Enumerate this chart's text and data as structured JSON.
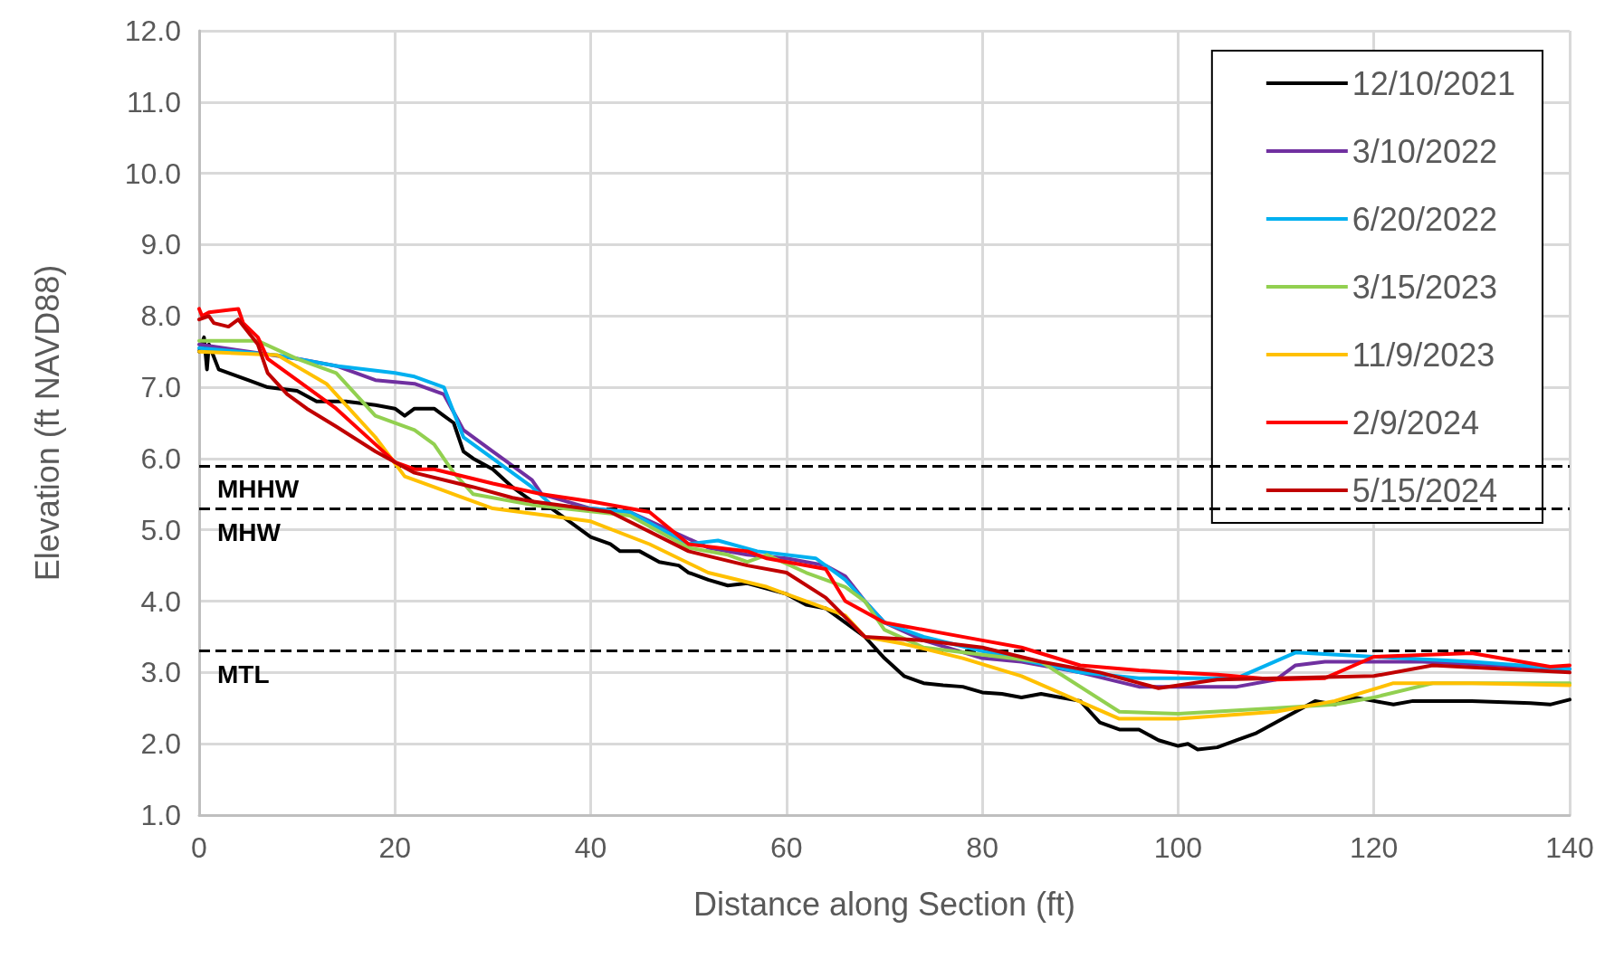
{
  "chart_data": {
    "type": "line",
    "xlabel": "Distance along Section (ft)",
    "ylabel": "Elevation (ft NAVD88)",
    "xlim": [
      0,
      140
    ],
    "xticks": [
      0,
      20,
      40,
      60,
      80,
      100,
      120,
      140
    ],
    "ylim": [
      1,
      12
    ],
    "yticks": [
      {
        "value": 1,
        "label": "1.0"
      },
      {
        "value": 2,
        "label": "2.0"
      },
      {
        "value": 3,
        "label": "3.0"
      },
      {
        "value": 4,
        "label": "4.0"
      },
      {
        "value": 5,
        "label": "5.0"
      },
      {
        "value": 6,
        "label": "6.0"
      },
      {
        "value": 7,
        "label": "7.0"
      },
      {
        "value": 8,
        "label": "8.0"
      },
      {
        "value": 9,
        "label": "9.0"
      },
      {
        "value": 10,
        "label": "10.0"
      },
      {
        "value": 11,
        "label": "11.0"
      },
      {
        "value": 12,
        "label": "12.0"
      }
    ],
    "grid": true,
    "legend": "top right",
    "marker": "none",
    "line_style": "solid",
    "ref_lines": [
      {
        "axis": "y",
        "value": 5.9,
        "label": "MHHW",
        "color": "#000000",
        "line_style": "dashed"
      },
      {
        "axis": "y",
        "value": 5.3,
        "label": "MHW",
        "color": "#000000",
        "line_style": "dashed"
      },
      {
        "axis": "y",
        "value": 3.3,
        "label": "MTL",
        "color": "#000000",
        "line_style": "dashed"
      }
    ],
    "series": [
      {
        "name": "12/10/2021",
        "color": "#000000",
        "x": [
          0,
          0.5,
          0.8,
          1,
          2,
          5,
          7,
          10,
          12,
          15,
          18,
          20,
          21,
          22,
          24,
          25,
          26,
          27,
          28,
          30,
          32,
          34,
          36,
          38,
          40,
          42,
          43,
          45,
          47,
          49,
          50,
          52,
          54,
          56,
          60,
          62,
          64,
          66,
          68,
          70,
          72,
          74,
          76,
          78,
          80,
          82,
          84,
          86,
          88,
          90,
          92,
          94,
          96,
          98,
          100,
          101,
          102,
          104,
          106,
          108,
          110,
          112,
          114,
          116,
          118,
          120,
          122,
          124,
          130,
          136,
          138,
          140
        ],
        "values": [
          7.5,
          7.7,
          7.25,
          7.6,
          7.25,
          7.1,
          7.0,
          6.95,
          6.8,
          6.8,
          6.75,
          6.7,
          6.6,
          6.7,
          6.7,
          6.6,
          6.5,
          6.1,
          6.0,
          5.85,
          5.6,
          5.4,
          5.3,
          5.1,
          4.9,
          4.8,
          4.7,
          4.7,
          4.55,
          4.5,
          4.4,
          4.3,
          4.22,
          4.25,
          4.1,
          3.95,
          3.9,
          3.7,
          3.5,
          3.2,
          2.95,
          2.85,
          2.82,
          2.8,
          2.72,
          2.7,
          2.65,
          2.7,
          2.65,
          2.6,
          2.3,
          2.2,
          2.2,
          2.05,
          1.97,
          2.0,
          1.92,
          1.95,
          2.05,
          2.15,
          2.3,
          2.45,
          2.6,
          2.55,
          2.65,
          2.6,
          2.55,
          2.6,
          2.6,
          2.57,
          2.55,
          2.62
        ]
      },
      {
        "name": "3/10/2022",
        "color": "#7030a0",
        "x": [
          0,
          10,
          14,
          18,
          22,
          25,
          27,
          30,
          34,
          35,
          40,
          44,
          48,
          52,
          56,
          60,
          64,
          66,
          68,
          70,
          74,
          80,
          84,
          90,
          96,
          106,
          110,
          112,
          115,
          125,
          140
        ],
        "values": [
          7.6,
          7.4,
          7.3,
          7.1,
          7.05,
          6.9,
          6.4,
          6.1,
          5.7,
          5.5,
          5.3,
          5.25,
          5.0,
          4.75,
          4.65,
          4.6,
          4.5,
          4.35,
          4.0,
          3.7,
          3.45,
          3.2,
          3.15,
          3.0,
          2.8,
          2.8,
          2.9,
          3.1,
          3.15,
          3.15,
          3.05
        ]
      },
      {
        "name": "6/20/2022",
        "color": "#00b0f0",
        "x": [
          0,
          8,
          14,
          20,
          22,
          25,
          27,
          30,
          34,
          36,
          44,
          50,
          53,
          57,
          63,
          66,
          68,
          70,
          74,
          80,
          90,
          96,
          106,
          112,
          120,
          130,
          140
        ],
        "values": [
          7.55,
          7.45,
          7.3,
          7.2,
          7.15,
          7.0,
          6.3,
          6.0,
          5.6,
          5.35,
          5.25,
          4.8,
          4.85,
          4.7,
          4.6,
          4.3,
          4.0,
          3.7,
          3.5,
          3.3,
          3.0,
          2.92,
          2.92,
          3.28,
          3.22,
          3.15,
          3.05
        ]
      },
      {
        "name": "3/15/2023",
        "color": "#92d050",
        "x": [
          0,
          6,
          10,
          14,
          18,
          22,
          24,
          26,
          28,
          34,
          44,
          50,
          54,
          56,
          58,
          62,
          66,
          68,
          70,
          74,
          80,
          86,
          94,
          100,
          110,
          116,
          120,
          126,
          140
        ],
        "values": [
          7.65,
          7.65,
          7.4,
          7.2,
          6.6,
          6.4,
          6.2,
          5.8,
          5.5,
          5.35,
          5.2,
          4.75,
          4.65,
          4.55,
          4.65,
          4.4,
          4.2,
          4.0,
          3.6,
          3.35,
          3.25,
          3.15,
          2.45,
          2.42,
          2.5,
          2.55,
          2.65,
          2.85,
          2.85
        ]
      },
      {
        "name": "11/9/2023",
        "color": "#ffc000",
        "x": [
          0,
          8,
          13,
          18,
          21,
          24,
          30,
          40,
          46,
          52,
          58,
          62,
          66,
          68,
          72,
          78,
          84,
          94,
          100,
          110,
          116,
          122,
          130,
          140
        ],
        "values": [
          7.5,
          7.45,
          7.05,
          6.3,
          5.75,
          5.6,
          5.3,
          5.12,
          4.8,
          4.4,
          4.2,
          4.0,
          3.8,
          3.5,
          3.4,
          3.2,
          2.95,
          2.35,
          2.35,
          2.45,
          2.6,
          2.85,
          2.85,
          2.82
        ]
      },
      {
        "name": "2/9/2024",
        "color": "#ff0000",
        "x": [
          0,
          0.3,
          1,
          4,
          4.5,
          6,
          7,
          10,
          14,
          18,
          20,
          22,
          24,
          30,
          35,
          40,
          46,
          50,
          56,
          58,
          64,
          66,
          70,
          80,
          84,
          90,
          96,
          104,
          110,
          115,
          120,
          130,
          138,
          140
        ],
        "values": [
          8.1,
          8.0,
          8.05,
          8.1,
          7.9,
          7.7,
          7.4,
          7.1,
          6.7,
          6.2,
          5.95,
          5.85,
          5.85,
          5.65,
          5.5,
          5.4,
          5.25,
          4.8,
          4.7,
          4.6,
          4.45,
          4.0,
          3.7,
          3.45,
          3.35,
          3.1,
          3.03,
          2.97,
          2.9,
          2.92,
          3.22,
          3.27,
          3.08,
          3.1
        ]
      },
      {
        "name": "5/15/2024",
        "color": "#c00000",
        "x": [
          0,
          1,
          1.5,
          3,
          4,
          6,
          7,
          9,
          11,
          14,
          18,
          22,
          28,
          32,
          34,
          42,
          50,
          56,
          60,
          64,
          68,
          74,
          80,
          86,
          92,
          98,
          104,
          110,
          120,
          126,
          140
        ],
        "values": [
          7.95,
          8.0,
          7.9,
          7.85,
          7.95,
          7.6,
          7.2,
          6.9,
          6.7,
          6.45,
          6.1,
          5.8,
          5.6,
          5.45,
          5.4,
          5.25,
          4.7,
          4.5,
          4.4,
          4.05,
          3.5,
          3.45,
          3.35,
          3.15,
          3.0,
          2.78,
          2.9,
          2.92,
          2.95,
          3.1,
          3.0
        ]
      }
    ]
  }
}
